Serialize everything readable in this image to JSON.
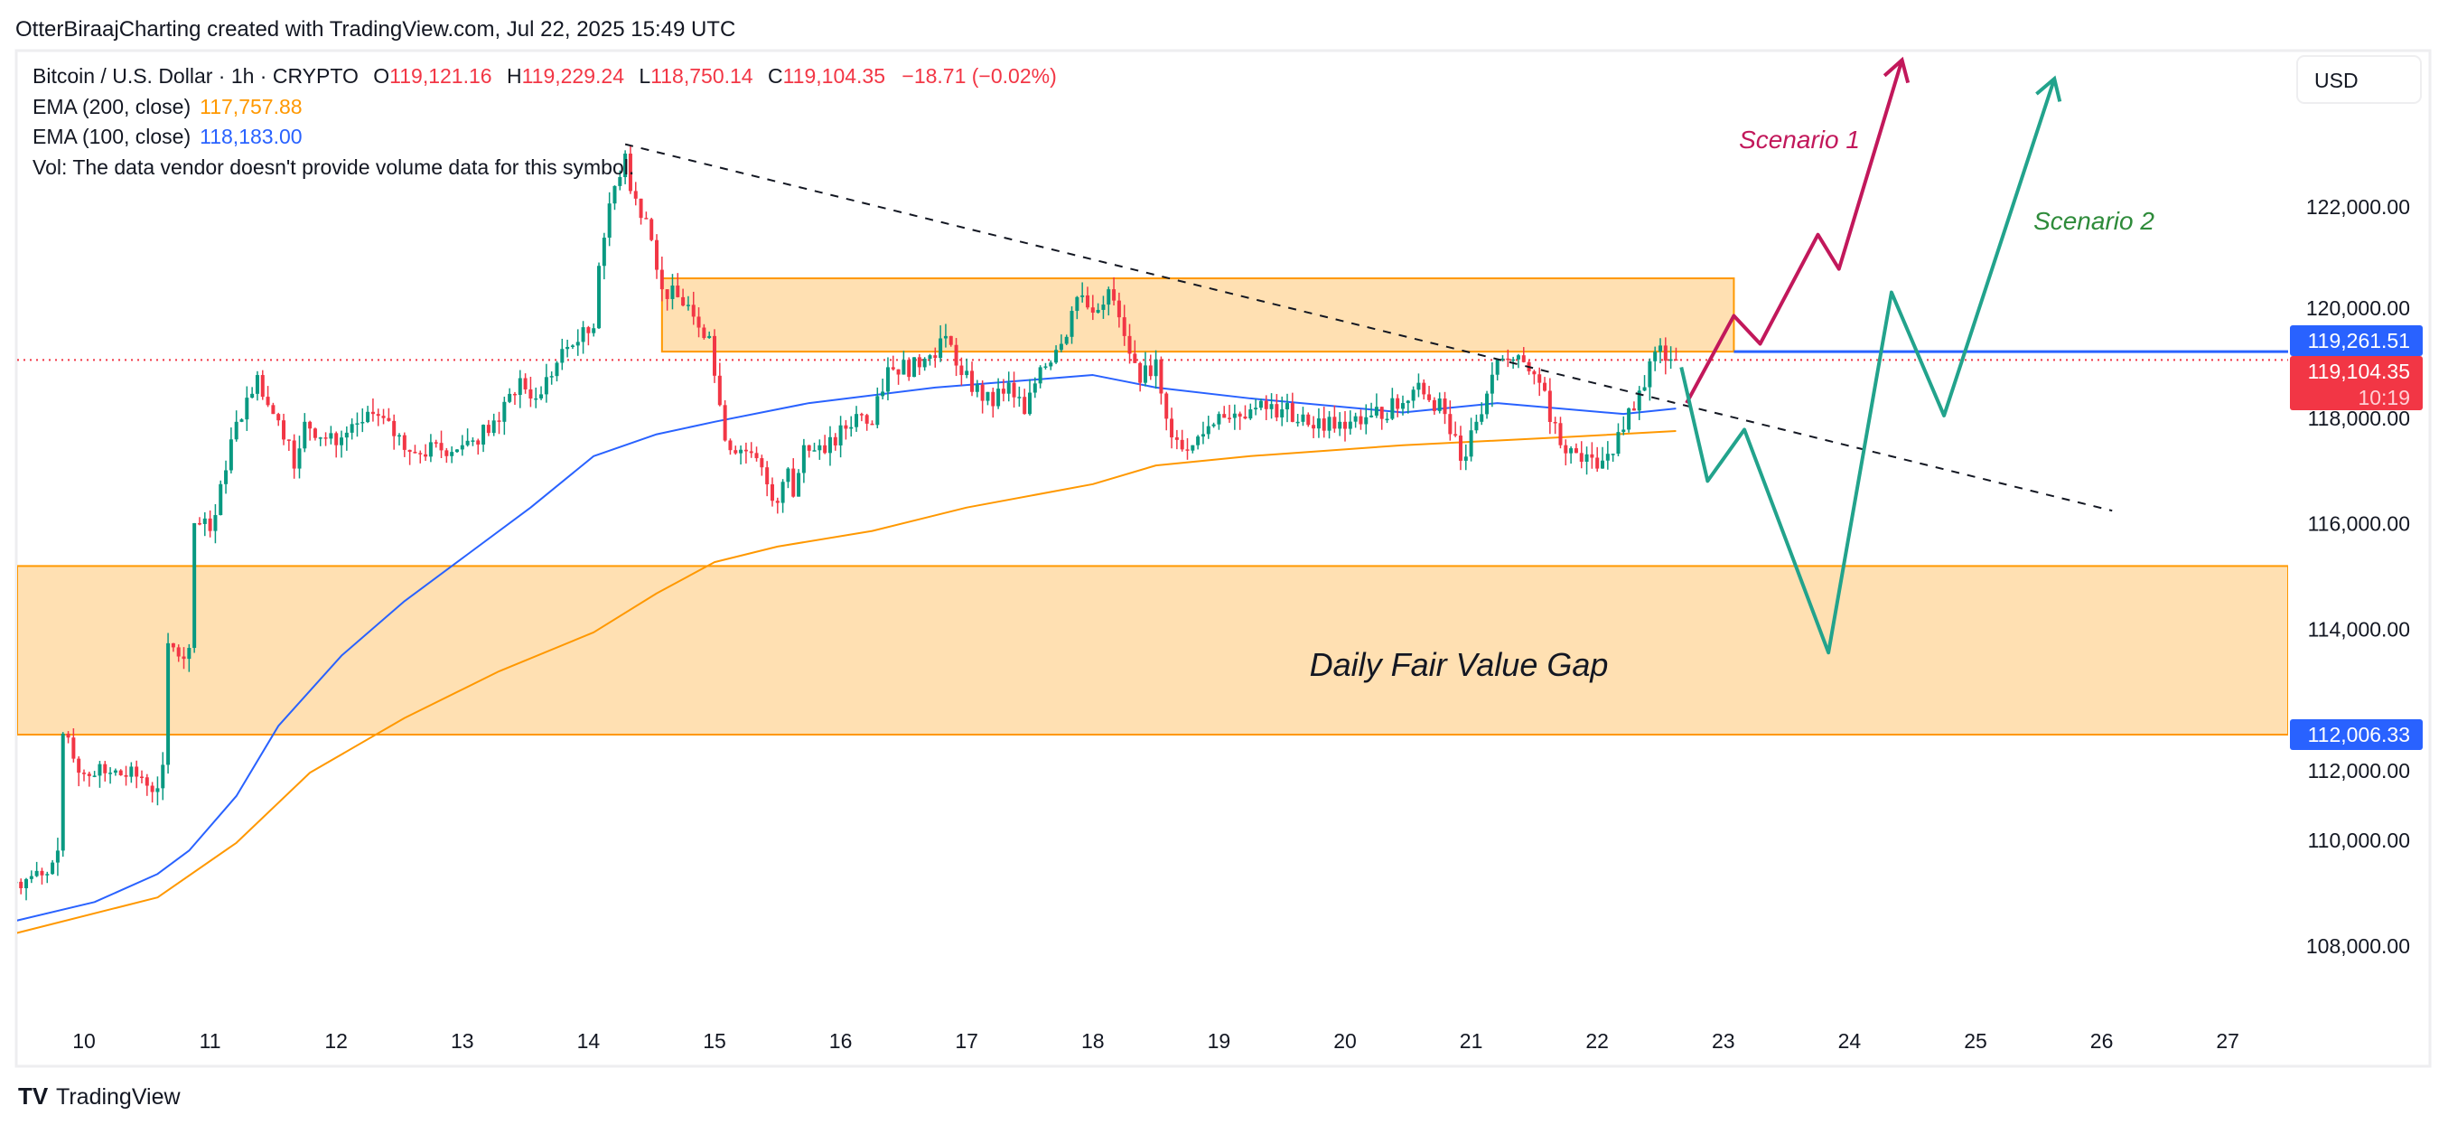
{
  "header": {
    "caption": "OtterBiraajCharting created with TradingView.com, Jul 22, 2025 15:49 UTC"
  },
  "legend": {
    "symbol": "Bitcoin / U.S. Dollar · 1h · CRYPTO",
    "o_label": "O",
    "o_value": "119,121.16",
    "h_label": "H",
    "h_value": "119,229.24",
    "l_label": "L",
    "l_value": "118,750.14",
    "c_label": "C",
    "c_value": "119,104.35",
    "change": "−18.71 (−0.02%)",
    "ema200_label": "EMA (200, close)",
    "ema200_value": "117,757.88",
    "ema100_label": "EMA (100, close)",
    "ema100_value": "118,183.00",
    "vol_note": "Vol: The data vendor doesn't provide volume data for this symbol."
  },
  "currency_button": "USD",
  "price_tags": {
    "level": "119,261.51",
    "last_price": "119,104.35",
    "countdown": "10:19",
    "fvg_low": "112,006.33"
  },
  "colors": {
    "up": "#089981",
    "down": "#f23645",
    "ema200": "#ff9800",
    "ema100": "#2962ff",
    "zone_fill": "#ffe0b2",
    "zone_border": "#ff9800",
    "scenario1": "#c2185b",
    "scenario2": "#22a38c",
    "scenario2_text": "#2e8b3a"
  },
  "annotations": {
    "scenario1": "Scenario 1",
    "scenario2": "Scenario 2",
    "fvg": "Daily Fair Value Gap"
  },
  "footer": {
    "logo": "TradingView"
  },
  "chart_data": {
    "type": "candlestick",
    "timeframe": "1h",
    "ylim": [
      107000,
      125000
    ],
    "y_ticks": [
      "122,000.00",
      "120,000.00",
      "118,000.00",
      "116,000.00",
      "114,000.00",
      "112,000.00",
      "110,000.00",
      "108,000.00"
    ],
    "y_tick_values": [
      122000,
      120000,
      118000,
      116000,
      114000,
      112000,
      110000,
      108000
    ],
    "x_ticks": [
      "10",
      "11",
      "12",
      "13",
      "14",
      "15",
      "16",
      "17",
      "18",
      "19",
      "20",
      "21",
      "22",
      "23",
      "24",
      "25",
      "26",
      "27"
    ],
    "grid": false,
    "close_path": [
      [
        "07-09 11:00",
        109218
      ],
      [
        "07-09 17:00",
        109366
      ],
      [
        "07-09 19:00",
        109809
      ],
      [
        "07-09 20:00",
        112024
      ],
      [
        "07-09 23:00",
        111285
      ],
      [
        "07-10 05:00",
        111285
      ],
      [
        "07-10 11:00",
        111197
      ],
      [
        "07-10 14:00",
        110990
      ],
      [
        "07-10 15:00",
        111434
      ],
      [
        "07-10 16:00",
        113737
      ],
      [
        "07-10 19:00",
        113442
      ],
      [
        "07-10 20:00",
        113649
      ],
      [
        "07-10 21:00",
        116012
      ],
      [
        "07-11 00:00",
        115864
      ],
      [
        "07-11 02:00",
        116751
      ],
      [
        "07-11 05:00",
        117932
      ],
      [
        "07-11 09:00",
        118818
      ],
      [
        "07-11 12:00",
        118080
      ],
      [
        "07-11 15:00",
        117578
      ],
      [
        "07-11 16:00",
        117046
      ],
      [
        "07-11 18:00",
        117932
      ],
      [
        "07-12 00:00",
        117489
      ],
      [
        "07-12 07:00",
        118080
      ],
      [
        "07-12 15:00",
        117341
      ],
      [
        "07-13 00:00",
        117489
      ],
      [
        "07-13 07:00",
        117932
      ],
      [
        "07-13 11:00",
        118759
      ],
      [
        "07-13 14:00",
        118375
      ],
      [
        "07-13 20:00",
        119350
      ],
      [
        "07-14 01:00",
        119705
      ],
      [
        "07-14 02:00",
        120886
      ],
      [
        "07-14 04:00",
        122068
      ],
      [
        "07-14 07:00",
        123013
      ],
      [
        "07-14 08:00",
        122304
      ],
      [
        "07-14 11:00",
        121772
      ],
      [
        "07-14 14:00",
        120443
      ],
      [
        "07-14 19:00",
        120148
      ],
      [
        "07-14 23:00",
        119557
      ],
      [
        "07-15 02:00",
        117578
      ],
      [
        "07-15 07:00",
        117341
      ],
      [
        "07-15 12:00",
        116396
      ],
      [
        "07-15 14:00",
        117046
      ],
      [
        "07-15 15:00",
        116514
      ],
      [
        "07-15 17:00",
        117489
      ],
      [
        "07-15 21:00",
        117341
      ],
      [
        "07-16 03:00",
        118080
      ],
      [
        "07-16 06:00",
        117873
      ],
      [
        "07-16 09:00",
        118966
      ],
      [
        "07-16 15:00",
        118966
      ],
      [
        "07-16 20:00",
        119557
      ],
      [
        "07-16 23:00",
        118818
      ],
      [
        "07-17 05:00",
        118228
      ],
      [
        "07-17 08:00",
        118671
      ],
      [
        "07-17 11:00",
        118080
      ],
      [
        "07-17 14:00",
        118966
      ],
      [
        "07-17 18:00",
        119409
      ],
      [
        "07-17 21:00",
        120295
      ],
      [
        "07-18 00:00",
        120000
      ],
      [
        "07-18 03:00",
        120443
      ],
      [
        "07-18 06:00",
        119557
      ],
      [
        "07-18 09:00",
        118671
      ],
      [
        "07-18 12:00",
        119114
      ],
      [
        "07-18 15:00",
        117637
      ],
      [
        "07-18 19:00",
        117489
      ],
      [
        "07-19 00:00",
        118080
      ],
      [
        "07-19 06:00",
        118168
      ],
      [
        "07-19 12:00",
        118168
      ],
      [
        "07-19 17:00",
        117873
      ],
      [
        "07-19 23:00",
        117932
      ],
      [
        "07-20 05:00",
        118050
      ],
      [
        "07-20 11:00",
        118287
      ],
      [
        "07-20 14:00",
        118671
      ],
      [
        "07-20 19:00",
        118080
      ],
      [
        "07-20 22:00",
        117194
      ],
      [
        "07-21 01:00",
        117932
      ],
      [
        "07-21 05:00",
        119114
      ],
      [
        "07-21 08:00",
        119114
      ],
      [
        "07-21 13:00",
        118671
      ],
      [
        "07-21 17:00",
        117489
      ],
      [
        "07-21 20:00",
        117341
      ],
      [
        "07-22 00:00",
        117046
      ],
      [
        "07-22 05:00",
        117784
      ],
      [
        "07-22 08:00",
        118523
      ],
      [
        "07-22 11:00",
        119261
      ],
      [
        "07-22 15:00",
        119104.35
      ]
    ],
    "ema100": [
      [
        "07-09 11:00",
        108479
      ],
      [
        "07-10 02:00",
        108834
      ],
      [
        "07-10 14:00",
        109366
      ],
      [
        "07-10 20:00",
        109809
      ],
      [
        "07-11 05:00",
        110843
      ],
      [
        "07-11 13:00",
        112172
      ],
      [
        "07-12 01:00",
        113501
      ],
      [
        "07-12 13:00",
        114535
      ],
      [
        "07-13 01:00",
        115421
      ],
      [
        "07-13 13:00",
        116308
      ],
      [
        "07-14 01:00",
        117282
      ],
      [
        "07-14 13:00",
        117696
      ],
      [
        "07-15 00:00",
        117932
      ],
      [
        "07-15 18:00",
        118287
      ],
      [
        "07-16 18:00",
        118582
      ],
      [
        "07-18 00:00",
        118818
      ],
      [
        "07-18 12:00",
        118582
      ],
      [
        "07-19 06:00",
        118375
      ],
      [
        "07-20 11:00",
        118109
      ],
      [
        "07-21 05:00",
        118287
      ],
      [
        "07-22 05:00",
        118080
      ],
      [
        "07-22 15:00",
        118183
      ]
    ],
    "ema200": [
      [
        "07-09 11:00",
        108243
      ],
      [
        "07-10 14:00",
        108922
      ],
      [
        "07-11 05:00",
        109956
      ],
      [
        "07-11 19:00",
        111285
      ],
      [
        "07-12 13:00",
        112320
      ],
      [
        "07-13 07:00",
        113206
      ],
      [
        "07-14 01:00",
        113944
      ],
      [
        "07-14 13:00",
        114683
      ],
      [
        "07-15 00:00",
        115274
      ],
      [
        "07-15 12:00",
        115569
      ],
      [
        "07-16 06:00",
        115864
      ],
      [
        "07-17 00:00",
        116308
      ],
      [
        "07-18 00:00",
        116751
      ],
      [
        "07-18 12:00",
        117105
      ],
      [
        "07-19 06:00",
        117282
      ],
      [
        "07-20 11:00",
        117489
      ],
      [
        "07-21 17:00",
        117637
      ],
      [
        "07-22 15:00",
        117758
      ]
    ],
    "zones": [
      {
        "from": "07-14 14:00",
        "to": "07-23 02:00",
        "top": 120650,
        "bottom": 119261.51
      },
      {
        "from": "07-09 11:00",
        "to": "axis",
        "top": 115200,
        "bottom": 112006.33
      }
    ],
    "level_line": {
      "from": "07-23 02:00",
      "price": 119261.51
    },
    "last_price_line": 119104.35,
    "trendline": [
      [
        "07-14 07:00",
        123190
      ],
      [
        "07-26 02:00",
        116248
      ]
    ],
    "scenario1_path": [
      [
        "07-22 17:00",
        118287
      ],
      [
        "07-23 02:00",
        119941
      ],
      [
        "07-23 07:00",
        119409
      ],
      [
        "07-23 18:00",
        121477
      ],
      [
        "07-23 22:00",
        120827
      ],
      [
        "07-24 10:00",
        124785
      ]
    ],
    "scenario2_path": [
      [
        "07-22 16:00",
        118966
      ],
      [
        "07-22 21:00",
        116810
      ],
      [
        "07-23 04:00",
        117784
      ],
      [
        "07-23 20:00",
        113560
      ],
      [
        "07-24 08:00",
        120384
      ],
      [
        "07-24 18:00",
        118050
      ],
      [
        "07-25 15:00",
        124431
      ]
    ]
  }
}
